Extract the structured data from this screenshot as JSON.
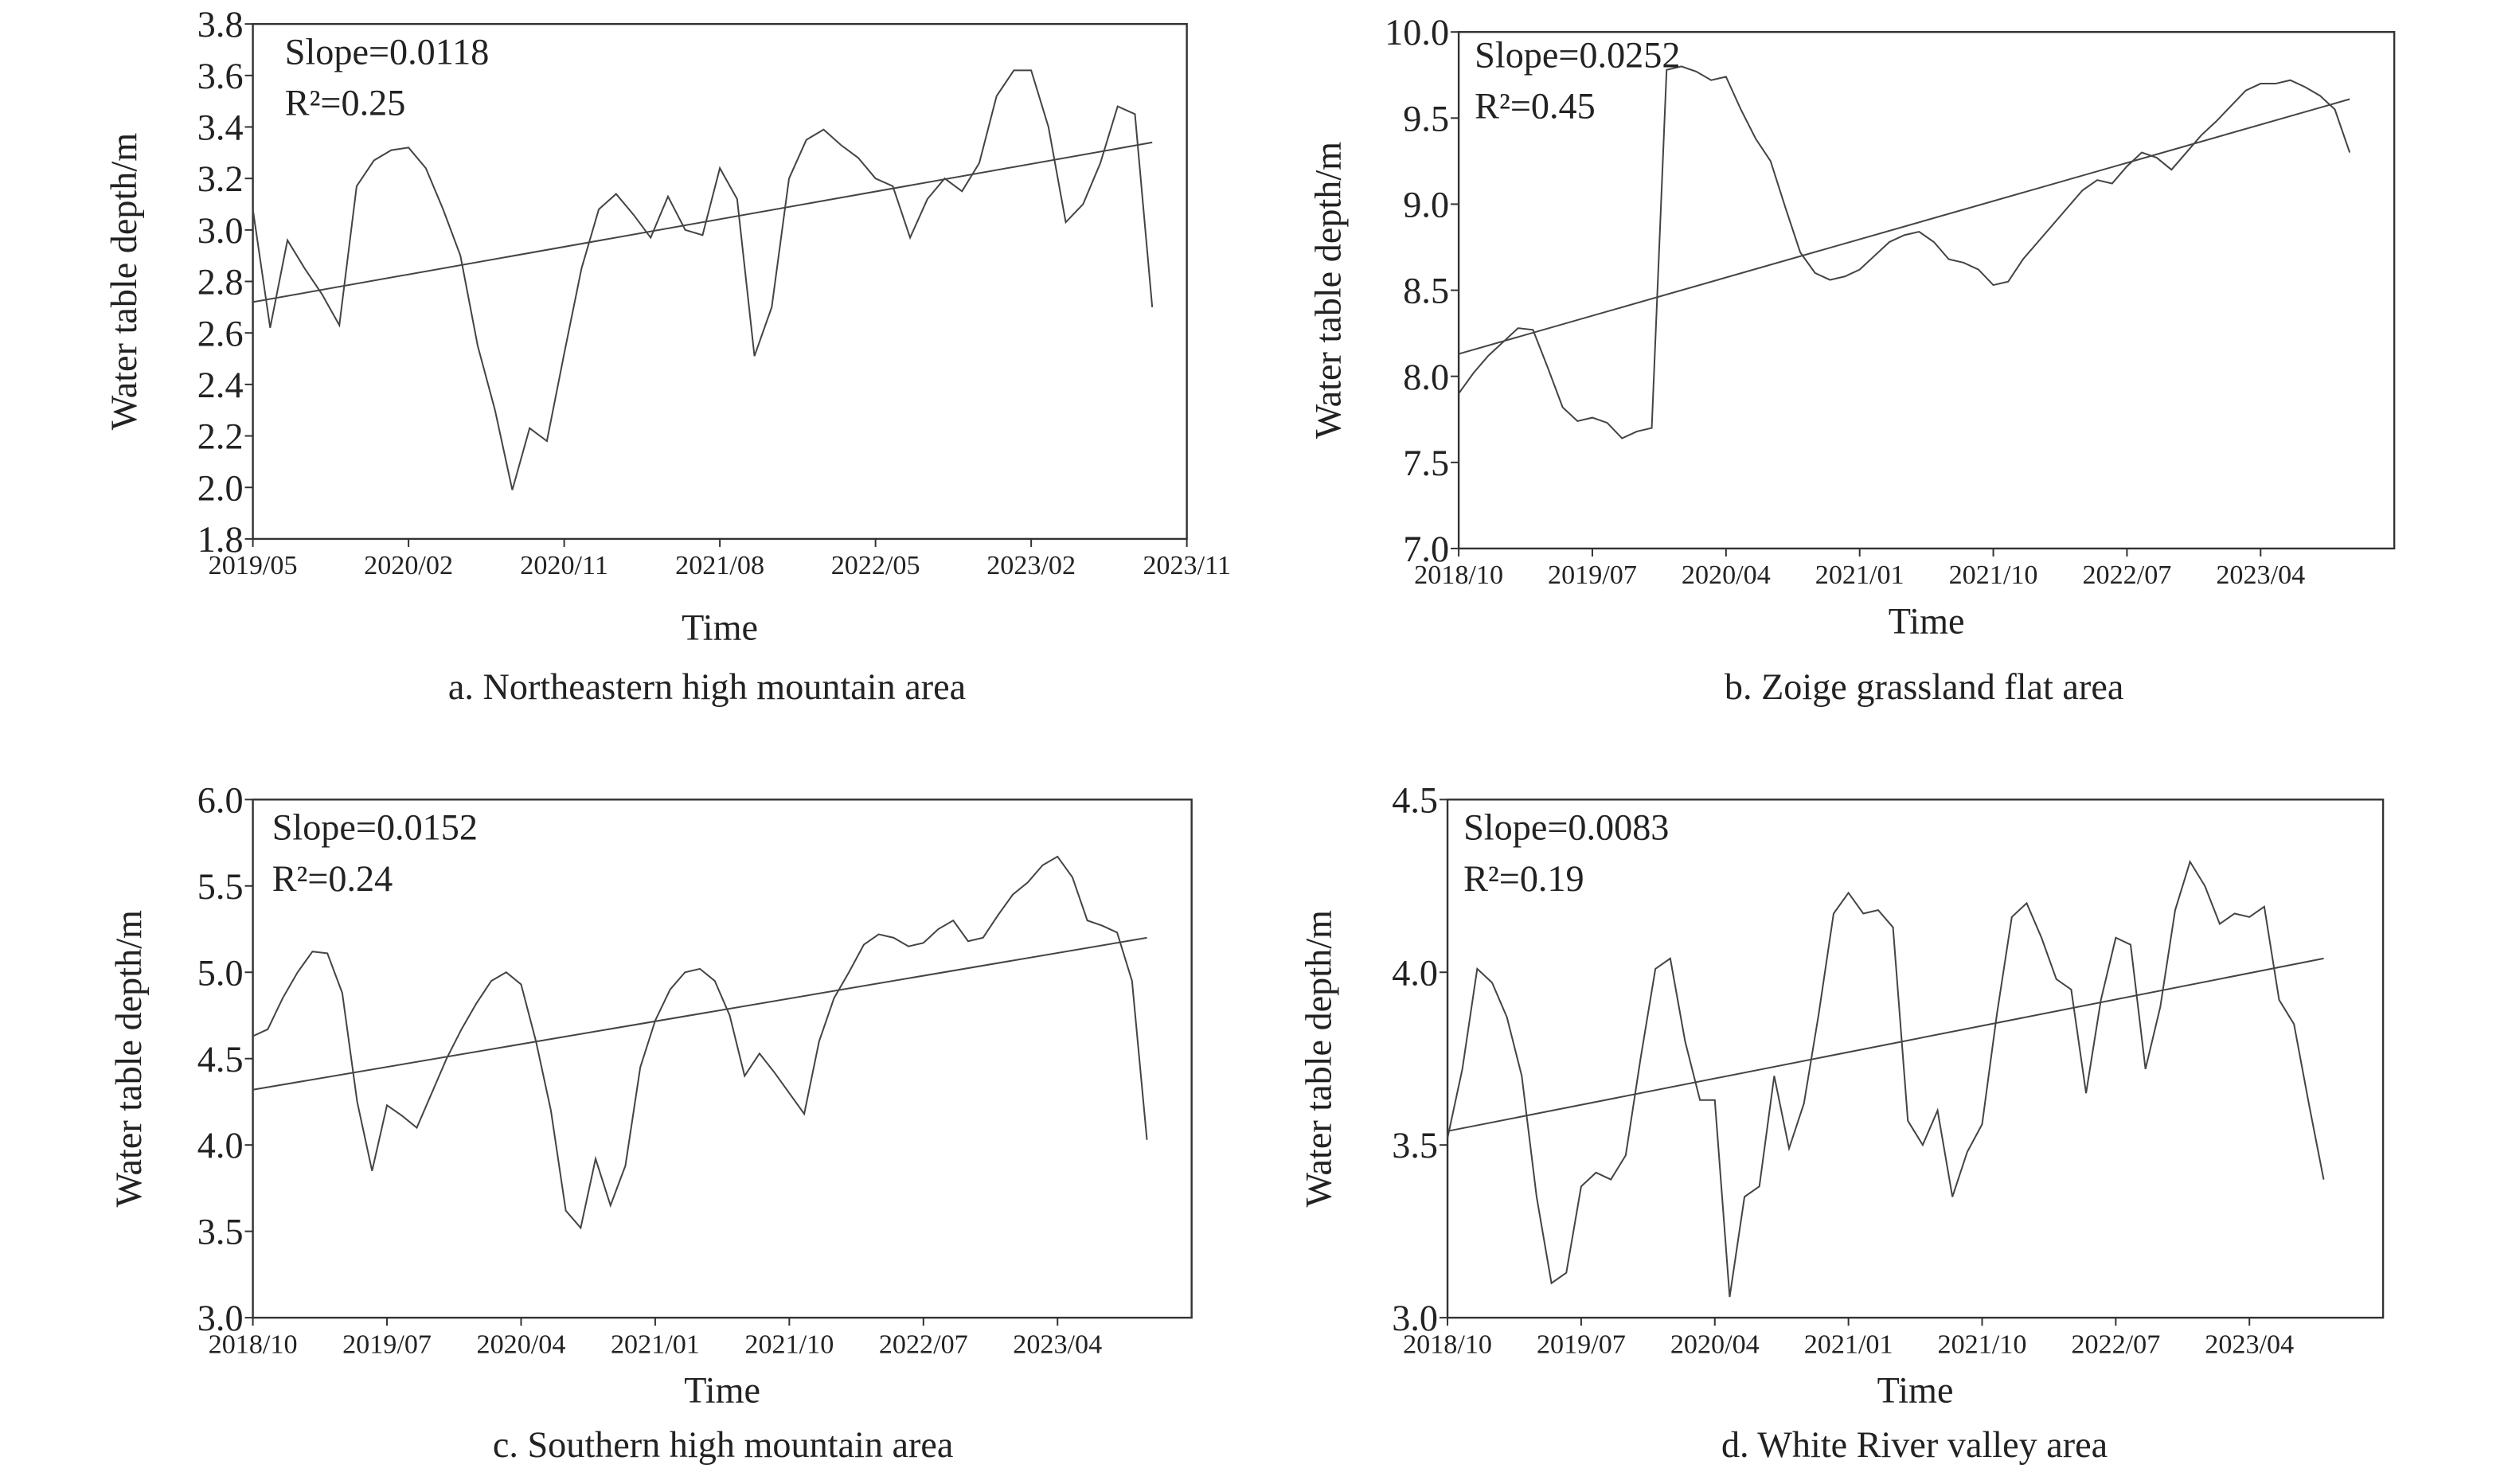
{
  "chart_data": [
    {
      "type": "line",
      "caption": "a. Northeastern high mountain area",
      "x_label": "Time",
      "y_label": "Water table depth/m",
      "annotations": [
        "Slope=0.0118",
        "R²=0.25"
      ],
      "x": [
        "2019/05",
        "2019/06",
        "2019/07",
        "2019/08",
        "2019/09",
        "2019/10",
        "2019/11",
        "2019/12",
        "2020/01",
        "2020/02",
        "2020/03",
        "2020/04",
        "2020/05",
        "2020/06",
        "2020/07",
        "2020/08",
        "2020/09",
        "2020/10",
        "2020/11",
        "2020/12",
        "2021/01",
        "2021/02",
        "2021/03",
        "2021/04",
        "2021/05",
        "2021/06",
        "2021/07",
        "2021/08",
        "2021/09",
        "2021/10",
        "2021/11",
        "2021/12",
        "2022/01",
        "2022/02",
        "2022/03",
        "2022/04",
        "2022/05",
        "2022/06",
        "2022/07",
        "2022/08",
        "2022/09",
        "2022/10",
        "2022/11",
        "2022/12",
        "2023/01",
        "2023/02",
        "2023/03",
        "2023/04",
        "2023/05",
        "2023/06",
        "2023/07",
        "2023/08",
        "2023/09"
      ],
      "values": [
        3.08,
        2.62,
        2.96,
        2.85,
        2.75,
        2.63,
        3.17,
        3.27,
        3.31,
        3.32,
        3.24,
        3.08,
        2.9,
        2.55,
        2.3,
        1.99,
        2.23,
        2.18,
        2.52,
        2.85,
        3.08,
        3.14,
        3.06,
        2.97,
        3.13,
        3.0,
        2.98,
        3.24,
        3.12,
        2.51,
        2.7,
        3.2,
        3.35,
        3.39,
        3.33,
        3.28,
        3.2,
        3.17,
        2.97,
        3.12,
        3.2,
        3.15,
        3.26,
        3.52,
        3.62,
        3.62,
        3.4,
        3.03,
        3.1,
        3.26,
        3.48,
        3.45,
        2.7
      ],
      "trend": {
        "x": [
          "2019/05",
          "2023/09"
        ],
        "values": [
          2.72,
          3.34
        ]
      },
      "color": "#444",
      "xlim": [
        "2019/05",
        "2023/11"
      ],
      "xticks": [
        "2019/05",
        "2020/02",
        "2020/11",
        "2021/08",
        "2022/05",
        "2023/02",
        "2023/11"
      ],
      "ylim": [
        1.8,
        3.8
      ],
      "yticks": [
        1.8,
        {
          "value": 2,
          "label": "2.0"
        },
        2.2,
        2.4,
        2.6,
        2.8,
        {
          "value": 3,
          "label": "3.0"
        },
        3.2,
        3.4,
        3.6,
        3.8
      ]
    },
    {
      "type": "line",
      "caption": "b. Zoige grassland flat area",
      "x_label": "Time",
      "y_label": "Water table depth/m",
      "annotations": [
        "Slope=0.0252",
        "R²=0.45"
      ],
      "x": [
        "2018/10",
        "2018/11",
        "2018/12",
        "2019/01",
        "2019/02",
        "2019/03",
        "2019/04",
        "2019/05",
        "2019/06",
        "2019/07",
        "2019/08",
        "2019/09",
        "2019/10",
        "2019/11",
        "2019/12",
        "2020/01",
        "2020/02",
        "2020/03",
        "2020/04",
        "2020/05",
        "2020/06",
        "2020/07",
        "2020/08",
        "2020/09",
        "2020/10",
        "2020/11",
        "2020/12",
        "2021/01",
        "2021/02",
        "2021/03",
        "2021/04",
        "2021/05",
        "2021/06",
        "2021/07",
        "2021/08",
        "2021/09",
        "2021/10",
        "2021/11",
        "2021/12",
        "2022/01",
        "2022/02",
        "2022/03",
        "2022/04",
        "2022/05",
        "2022/06",
        "2022/07",
        "2022/08",
        "2022/09",
        "2022/10",
        "2022/11",
        "2022/12",
        "2023/01",
        "2023/02",
        "2023/03",
        "2023/04",
        "2023/05",
        "2023/06",
        "2023/07",
        "2023/08",
        "2023/09",
        "2023/10"
      ],
      "values": [
        7.9,
        8.02,
        8.12,
        8.2,
        8.28,
        8.27,
        8.05,
        7.82,
        7.74,
        7.76,
        7.73,
        7.64,
        7.68,
        7.7,
        9.78,
        9.8,
        9.77,
        9.72,
        9.74,
        9.55,
        9.38,
        9.25,
        8.98,
        8.72,
        8.6,
        8.56,
        8.58,
        8.62,
        8.7,
        8.78,
        8.82,
        8.84,
        8.78,
        8.68,
        8.66,
        8.62,
        8.53,
        8.55,
        8.68,
        8.78,
        8.88,
        8.98,
        9.08,
        9.14,
        9.12,
        9.22,
        9.3,
        9.27,
        9.2,
        9.3,
        9.4,
        9.48,
        9.57,
        9.66,
        9.7,
        9.7,
        9.72,
        9.68,
        9.63,
        9.55,
        9.3
      ],
      "trend": {
        "x": [
          "2018/10",
          "2023/10"
        ],
        "values": [
          8.13,
          9.61
        ]
      },
      "color": "#444",
      "xlim": [
        "2018/10",
        "2024/01"
      ],
      "xticks": [
        "2018/10",
        "2019/07",
        "2020/04",
        "2021/01",
        "2021/10",
        "2022/07",
        "2023/04"
      ],
      "ylim": [
        7,
        10
      ],
      "yticks": [
        {
          "value": 7,
          "label": "7.0"
        },
        7.5,
        {
          "value": 8,
          "label": "8.0"
        },
        8.5,
        {
          "value": 9,
          "label": "9.0"
        },
        9.5,
        {
          "value": 10,
          "label": "10.0"
        }
      ]
    },
    {
      "type": "line",
      "caption": "c. Southern high mountain area",
      "x_label": "Time",
      "y_label": "Water table depth/m",
      "annotations": [
        "Slope=0.0152",
        "R²=0.24"
      ],
      "x": [
        "2018/10",
        "2018/11",
        "2018/12",
        "2019/01",
        "2019/02",
        "2019/03",
        "2019/04",
        "2019/05",
        "2019/06",
        "2019/07",
        "2019/08",
        "2019/09",
        "2019/10",
        "2019/11",
        "2019/12",
        "2020/01",
        "2020/02",
        "2020/03",
        "2020/04",
        "2020/05",
        "2020/06",
        "2020/07",
        "2020/08",
        "2020/09",
        "2020/10",
        "2020/11",
        "2020/12",
        "2021/01",
        "2021/02",
        "2021/03",
        "2021/04",
        "2021/05",
        "2021/06",
        "2021/07",
        "2021/08",
        "2021/09",
        "2021/10",
        "2021/11",
        "2021/12",
        "2022/01",
        "2022/02",
        "2022/03",
        "2022/04",
        "2022/05",
        "2022/06",
        "2022/07",
        "2022/08",
        "2022/09",
        "2022/10",
        "2022/11",
        "2022/12",
        "2023/01",
        "2023/02",
        "2023/03",
        "2023/04",
        "2023/05",
        "2023/06",
        "2023/07",
        "2023/08",
        "2023/09",
        "2023/10"
      ],
      "values": [
        4.63,
        4.67,
        4.85,
        5.0,
        5.12,
        5.11,
        4.88,
        4.25,
        3.85,
        4.23,
        4.17,
        4.1,
        4.3,
        4.5,
        4.67,
        4.82,
        4.95,
        5.0,
        4.93,
        4.6,
        4.2,
        3.62,
        3.52,
        3.92,
        3.65,
        3.88,
        4.45,
        4.72,
        4.9,
        5.0,
        5.02,
        4.95,
        4.75,
        4.4,
        4.53,
        4.42,
        4.3,
        4.18,
        4.6,
        4.85,
        5.0,
        5.16,
        5.22,
        5.2,
        5.15,
        5.17,
        5.25,
        5.3,
        5.18,
        5.2,
        5.33,
        5.45,
        5.52,
        5.62,
        5.67,
        5.55,
        5.3,
        5.27,
        5.23,
        4.95,
        4.03
      ],
      "trend": {
        "x": [
          "2018/10",
          "2023/10"
        ],
        "values": [
          4.32,
          5.2
        ]
      },
      "color": "#444",
      "xlim": [
        "2018/10",
        "2024/01"
      ],
      "xticks": [
        "2018/10",
        "2019/07",
        "2020/04",
        "2021/01",
        "2021/10",
        "2022/07",
        "2023/04"
      ],
      "ylim": [
        3,
        6
      ],
      "yticks": [
        {
          "value": 3,
          "label": "3.0"
        },
        3.5,
        {
          "value": 4,
          "label": "4.0"
        },
        4.5,
        {
          "value": 5,
          "label": "5.0"
        },
        5.5,
        {
          "value": 6,
          "label": "6.0"
        }
      ]
    },
    {
      "type": "line",
      "caption": "d. White River valley area",
      "x_label": "Time",
      "y_label": "Water table depth/m",
      "annotations": [
        "Slope=0.0083",
        "R²=0.19"
      ],
      "x": [
        "2018/10",
        "2018/11",
        "2018/12",
        "2019/01",
        "2019/02",
        "2019/03",
        "2019/04",
        "2019/05",
        "2019/06",
        "2019/07",
        "2019/08",
        "2019/09",
        "2019/10",
        "2019/11",
        "2019/12",
        "2020/01",
        "2020/02",
        "2020/03",
        "2020/04",
        "2020/05",
        "2020/06",
        "2020/07",
        "2020/08",
        "2020/09",
        "2020/10",
        "2020/11",
        "2020/12",
        "2021/01",
        "2021/02",
        "2021/03",
        "2021/04",
        "2021/05",
        "2021/06",
        "2021/07",
        "2021/08",
        "2021/09",
        "2021/10",
        "2021/11",
        "2021/12",
        "2022/01",
        "2022/02",
        "2022/03",
        "2022/04",
        "2022/05",
        "2022/06",
        "2022/07",
        "2022/08",
        "2022/09",
        "2022/10",
        "2022/11",
        "2022/12",
        "2023/01",
        "2023/02",
        "2023/03",
        "2023/04",
        "2023/05",
        "2023/06",
        "2023/07",
        "2023/08",
        "2023/09"
      ],
      "values": [
        3.52,
        3.72,
        4.01,
        3.97,
        3.87,
        3.7,
        3.35,
        3.1,
        3.13,
        3.38,
        3.42,
        3.4,
        3.47,
        3.75,
        4.01,
        4.04,
        3.8,
        3.63,
        3.63,
        3.06,
        3.35,
        3.38,
        3.7,
        3.49,
        3.62,
        3.88,
        4.17,
        4.23,
        4.17,
        4.18,
        4.13,
        3.57,
        3.5,
        3.6,
        3.35,
        3.48,
        3.56,
        3.88,
        4.16,
        4.2,
        4.1,
        3.98,
        3.95,
        3.65,
        3.92,
        4.1,
        4.08,
        3.72,
        3.9,
        4.18,
        4.32,
        4.25,
        4.14,
        4.17,
        4.16,
        4.19,
        3.92,
        3.85,
        3.62,
        3.4
      ],
      "trend": {
        "x": [
          "2018/10",
          "2023/09"
        ],
        "values": [
          3.54,
          4.04
        ]
      },
      "color": "#444",
      "xlim": [
        "2018/10",
        "2024/01"
      ],
      "xticks": [
        "2018/10",
        "2019/07",
        "2020/04",
        "2021/01",
        "2021/10",
        "2022/07",
        "2023/04"
      ],
      "ylim": [
        3,
        4.5
      ],
      "yticks": [
        {
          "value": 3,
          "label": "3.0"
        },
        3.5,
        {
          "value": 4,
          "label": "4.0"
        },
        4.5
      ]
    }
  ]
}
